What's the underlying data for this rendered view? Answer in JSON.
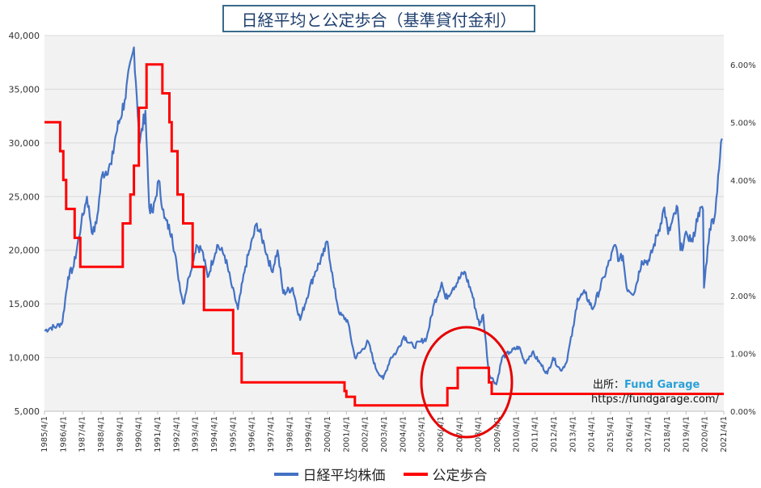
{
  "chart_data": {
    "type": "line",
    "title": "日経平均と公定歩合（基準貸付金利）",
    "x_ticks": [
      "1985/4/1",
      "1986/4/1",
      "1987/4/1",
      "1988/4/1",
      "1989/4/1",
      "1990/4/1",
      "1991/4/1",
      "1992/4/1",
      "1993/4/1",
      "1994/4/1",
      "1995/4/1",
      "1996/4/1",
      "1997/4/1",
      "1998/4/1",
      "1999/4/1",
      "2000/4/1",
      "2001/4/1",
      "2002/4/1",
      "2003/4/1",
      "2004/4/1",
      "2005/4/1",
      "2006/4/1",
      "2007/4/1",
      "2008/4/1",
      "2009/4/1",
      "2010/4/1",
      "2011/4/1",
      "2012/4/1",
      "2013/4/1",
      "2014/4/1",
      "2015/4/1",
      "2016/4/1",
      "2017/4/1",
      "2018/4/1",
      "2019/4/1",
      "2020/4/1",
      "2021/4/1"
    ],
    "y_left": {
      "ticks": [
        "5,000",
        "10,000",
        "15,000",
        "20,000",
        "25,000",
        "30,000",
        "35,000",
        "40,000"
      ],
      "range": [
        5000,
        40000
      ]
    },
    "y_right": {
      "ticks": [
        "0.00%",
        "1.00%",
        "2.00%",
        "3.00%",
        "4.00%",
        "5.00%",
        "6.00%"
      ],
      "range": [
        0,
        6.5
      ]
    },
    "grid": true,
    "legend_position": "bottom",
    "series": [
      {
        "name": "日経平均株価",
        "axis": "left",
        "color": "#4472c4",
        "points": [
          [
            1985.25,
            12500
          ],
          [
            1985.6,
            12800
          ],
          [
            1985.9,
            12900
          ],
          [
            1986.2,
            13300
          ],
          [
            1986.5,
            17500
          ],
          [
            1986.8,
            18500
          ],
          [
            1987.2,
            22500
          ],
          [
            1987.5,
            25000
          ],
          [
            1987.8,
            21500
          ],
          [
            1988.0,
            22500
          ],
          [
            1988.3,
            27000
          ],
          [
            1988.8,
            28000
          ],
          [
            1989.0,
            30500
          ],
          [
            1989.5,
            34000
          ],
          [
            1989.99,
            38900
          ],
          [
            1990.3,
            30000
          ],
          [
            1990.6,
            33000
          ],
          [
            1990.8,
            24000
          ],
          [
            1991.0,
            23500
          ],
          [
            1991.3,
            26500
          ],
          [
            1991.6,
            23000
          ],
          [
            1992.0,
            21500
          ],
          [
            1992.3,
            18000
          ],
          [
            1992.6,
            15000
          ],
          [
            1992.9,
            17500
          ],
          [
            1993.3,
            20500
          ],
          [
            1993.6,
            20000
          ],
          [
            1993.9,
            17500
          ],
          [
            1994.4,
            20500
          ],
          [
            1994.8,
            19500
          ],
          [
            1995.2,
            16500
          ],
          [
            1995.5,
            14500
          ],
          [
            1995.9,
            18500
          ],
          [
            1996.5,
            22500
          ],
          [
            1996.9,
            20500
          ],
          [
            1997.3,
            18000
          ],
          [
            1997.6,
            20000
          ],
          [
            1997.9,
            16000
          ],
          [
            1998.4,
            16500
          ],
          [
            1998.8,
            13500
          ],
          [
            1999.3,
            16500
          ],
          [
            1999.6,
            18000
          ],
          [
            2000.0,
            19500
          ],
          [
            2000.25,
            20800
          ],
          [
            2000.6,
            16500
          ],
          [
            2000.9,
            14000
          ],
          [
            2001.3,
            13500
          ],
          [
            2001.7,
            10000
          ],
          [
            2002.0,
            10500
          ],
          [
            2002.4,
            11500
          ],
          [
            2002.8,
            9000
          ],
          [
            2003.2,
            8000
          ],
          [
            2003.6,
            10000
          ],
          [
            2003.9,
            10500
          ],
          [
            2004.3,
            12000
          ],
          [
            2004.8,
            11000
          ],
          [
            2005.2,
            11500
          ],
          [
            2005.5,
            11800
          ],
          [
            2005.9,
            15000
          ],
          [
            2006.3,
            17000
          ],
          [
            2006.5,
            15500
          ],
          [
            2006.9,
            16500
          ],
          [
            2007.5,
            18000
          ],
          [
            2007.9,
            16000
          ],
          [
            2008.3,
            13000
          ],
          [
            2008.5,
            14000
          ],
          [
            2008.8,
            8500
          ],
          [
            2009.2,
            7500
          ],
          [
            2009.5,
            10000
          ],
          [
            2009.9,
            10500
          ],
          [
            2010.4,
            11000
          ],
          [
            2010.7,
            9500
          ],
          [
            2011.1,
            10500
          ],
          [
            2011.5,
            9500
          ],
          [
            2011.9,
            8500
          ],
          [
            2012.2,
            10000
          ],
          [
            2012.6,
            8800
          ],
          [
            2012.9,
            9500
          ],
          [
            2013.3,
            13000
          ],
          [
            2013.5,
            15500
          ],
          [
            2013.9,
            16000
          ],
          [
            2014.3,
            14500
          ],
          [
            2014.9,
            17500
          ],
          [
            2015.5,
            20500
          ],
          [
            2015.7,
            19000
          ],
          [
            2015.9,
            19500
          ],
          [
            2016.1,
            16500
          ],
          [
            2016.5,
            16000
          ],
          [
            2016.9,
            19000
          ],
          [
            2017.3,
            19000
          ],
          [
            2017.9,
            22500
          ],
          [
            2018.1,
            24000
          ],
          [
            2018.3,
            21500
          ],
          [
            2018.8,
            24000
          ],
          [
            2018.95,
            20000
          ],
          [
            2019.3,
            21500
          ],
          [
            2019.6,
            20800
          ],
          [
            2019.9,
            23500
          ],
          [
            2020.15,
            23800
          ],
          [
            2020.2,
            16500
          ],
          [
            2020.5,
            22000
          ],
          [
            2020.8,
            23500
          ],
          [
            2020.95,
            27000
          ],
          [
            2021.15,
            30400
          ]
        ]
      },
      {
        "name": "公定歩合",
        "axis": "right",
        "color": "#ff0000",
        "steps": [
          [
            1985.25,
            5.0
          ],
          [
            1986.08,
            4.5
          ],
          [
            1986.25,
            4.0
          ],
          [
            1986.4,
            3.5
          ],
          [
            1986.85,
            3.0
          ],
          [
            1987.15,
            2.5
          ],
          [
            1989.4,
            3.25
          ],
          [
            1989.8,
            3.75
          ],
          [
            1989.99,
            4.25
          ],
          [
            1990.25,
            5.25
          ],
          [
            1990.66,
            6.0
          ],
          [
            1991.5,
            5.5
          ],
          [
            1991.87,
            5.0
          ],
          [
            1991.99,
            4.5
          ],
          [
            1992.3,
            3.75
          ],
          [
            1992.6,
            3.25
          ],
          [
            1993.1,
            2.5
          ],
          [
            1993.7,
            1.75
          ],
          [
            1995.25,
            1.0
          ],
          [
            1995.7,
            0.5
          ],
          [
            2001.15,
            0.35
          ],
          [
            2001.25,
            0.25
          ],
          [
            2001.7,
            0.1
          ],
          [
            2006.6,
            0.4
          ],
          [
            2007.15,
            0.75
          ],
          [
            2008.8,
            0.5
          ],
          [
            2008.95,
            0.3
          ],
          [
            2021.25,
            0.3
          ]
        ]
      }
    ],
    "annotations": {
      "source_label": "出所：",
      "source_name": "Fund Garage",
      "source_url": "https://fundgarage.com/"
    }
  }
}
